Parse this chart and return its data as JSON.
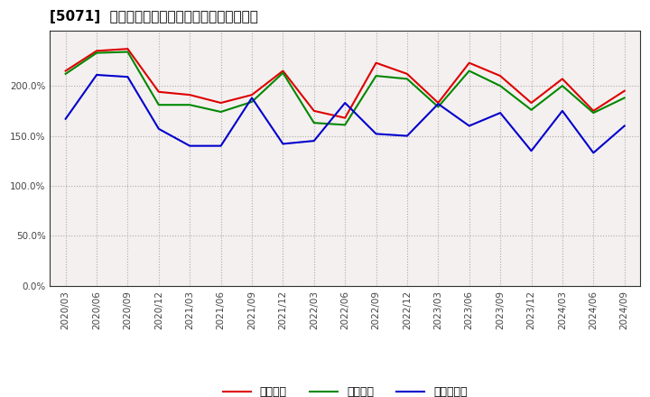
{
  "title": "[5071]  流動比率、当座比率、現預金比率の推移",
  "dates": [
    "2020/03",
    "2020/06",
    "2020/09",
    "2020/12",
    "2021/03",
    "2021/06",
    "2021/09",
    "2021/12",
    "2022/03",
    "2022/06",
    "2022/09",
    "2022/12",
    "2023/03",
    "2023/06",
    "2023/09",
    "2023/12",
    "2024/03",
    "2024/06",
    "2024/09"
  ],
  "ryudo": [
    215,
    235,
    237,
    194,
    191,
    183,
    191,
    215,
    175,
    168,
    223,
    212,
    183,
    223,
    210,
    183,
    207,
    175,
    195
  ],
  "toza": [
    212,
    233,
    234,
    181,
    181,
    174,
    184,
    213,
    163,
    161,
    210,
    207,
    179,
    215,
    200,
    176,
    200,
    173,
    188
  ],
  "genyo": [
    167,
    211,
    209,
    157,
    140,
    140,
    188,
    142,
    145,
    183,
    152,
    150,
    182,
    160,
    173,
    135,
    175,
    133,
    160
  ],
  "ryudo_color": "#dd0000",
  "toza_color": "#008800",
  "genyo_color": "#0000cc",
  "fig_bg_color": "#ffffff",
  "plot_bg_color": "#f5f0f0",
  "grid_color": "#aaaaaa",
  "ylim": [
    0,
    255
  ],
  "yticks": [
    0,
    50,
    100,
    150,
    200
  ],
  "ytick_labels": [
    "0.0%",
    "50.0%",
    "100.0%",
    "150.0%",
    "200.0%"
  ],
  "legend_labels": [
    "流動比率",
    "当座比率",
    "現預金比率"
  ],
  "title_fontsize": 11,
  "tick_fontsize": 7.5,
  "legend_fontsize": 9,
  "line_width": 1.5
}
